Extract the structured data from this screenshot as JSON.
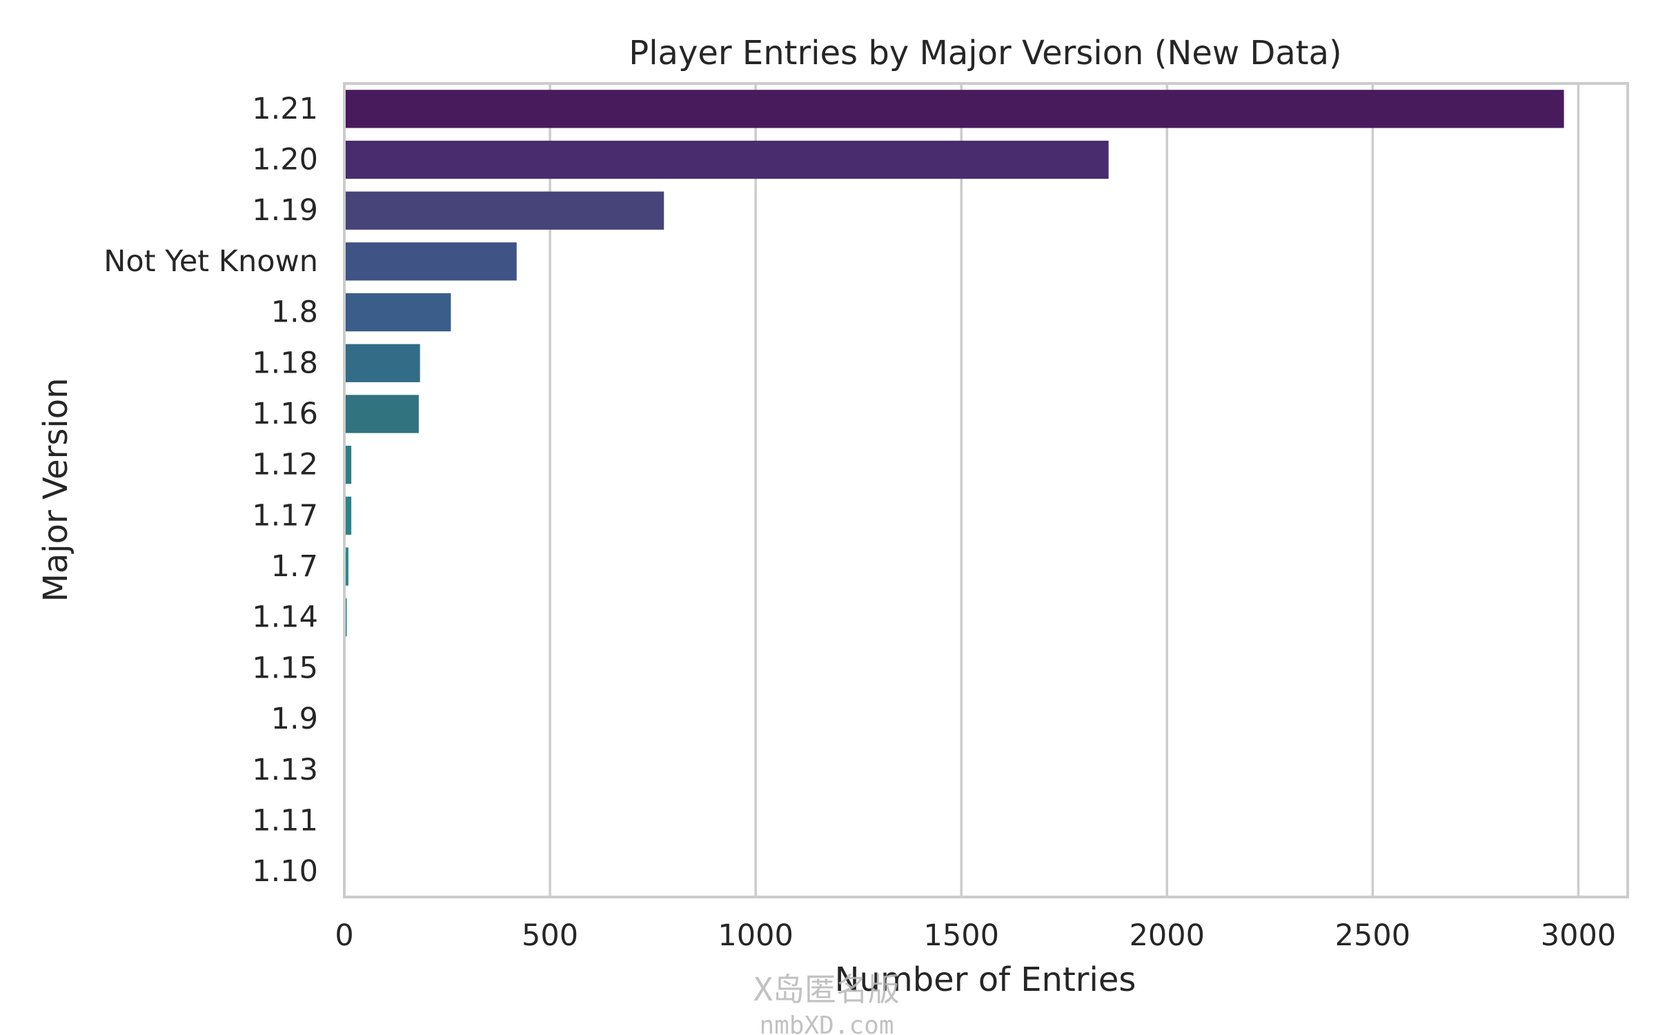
{
  "chart_data": {
    "type": "bar",
    "orientation": "horizontal",
    "title": "Player Entries by Major Version (New Data)",
    "xlabel": "Number of Entries",
    "ylabel": "Major Version",
    "categories": [
      "1.21",
      "1.20",
      "1.19",
      "Not Yet Known",
      "1.8",
      "1.18",
      "1.16",
      "1.12",
      "1.17",
      "1.7",
      "1.14",
      "1.15",
      "1.9",
      "1.13",
      "1.11",
      "1.10"
    ],
    "values": [
      2965,
      1858,
      777,
      419,
      259,
      184,
      181,
      17,
      17,
      10,
      6,
      1,
      1,
      0,
      0,
      0
    ],
    "colors": [
      "#481b5c",
      "#482c6e",
      "#47447a",
      "#3f5384",
      "#3a5d8a",
      "#326c86",
      "#31737f",
      "#2d7e83",
      "#2a848a",
      "#288b8a",
      "#23958b",
      "#22a08a",
      "#25a987",
      "#2fb47d",
      "#3ec06f",
      "#55cb60"
    ],
    "xlim": [
      0,
      3120
    ],
    "xticks": [
      0,
      500,
      1000,
      1500,
      2000,
      2500,
      3000
    ],
    "grid": "vertical",
    "legend": "none"
  },
  "watermark": {
    "line1": "X岛匿名版",
    "line2": "nmbXD.com"
  }
}
